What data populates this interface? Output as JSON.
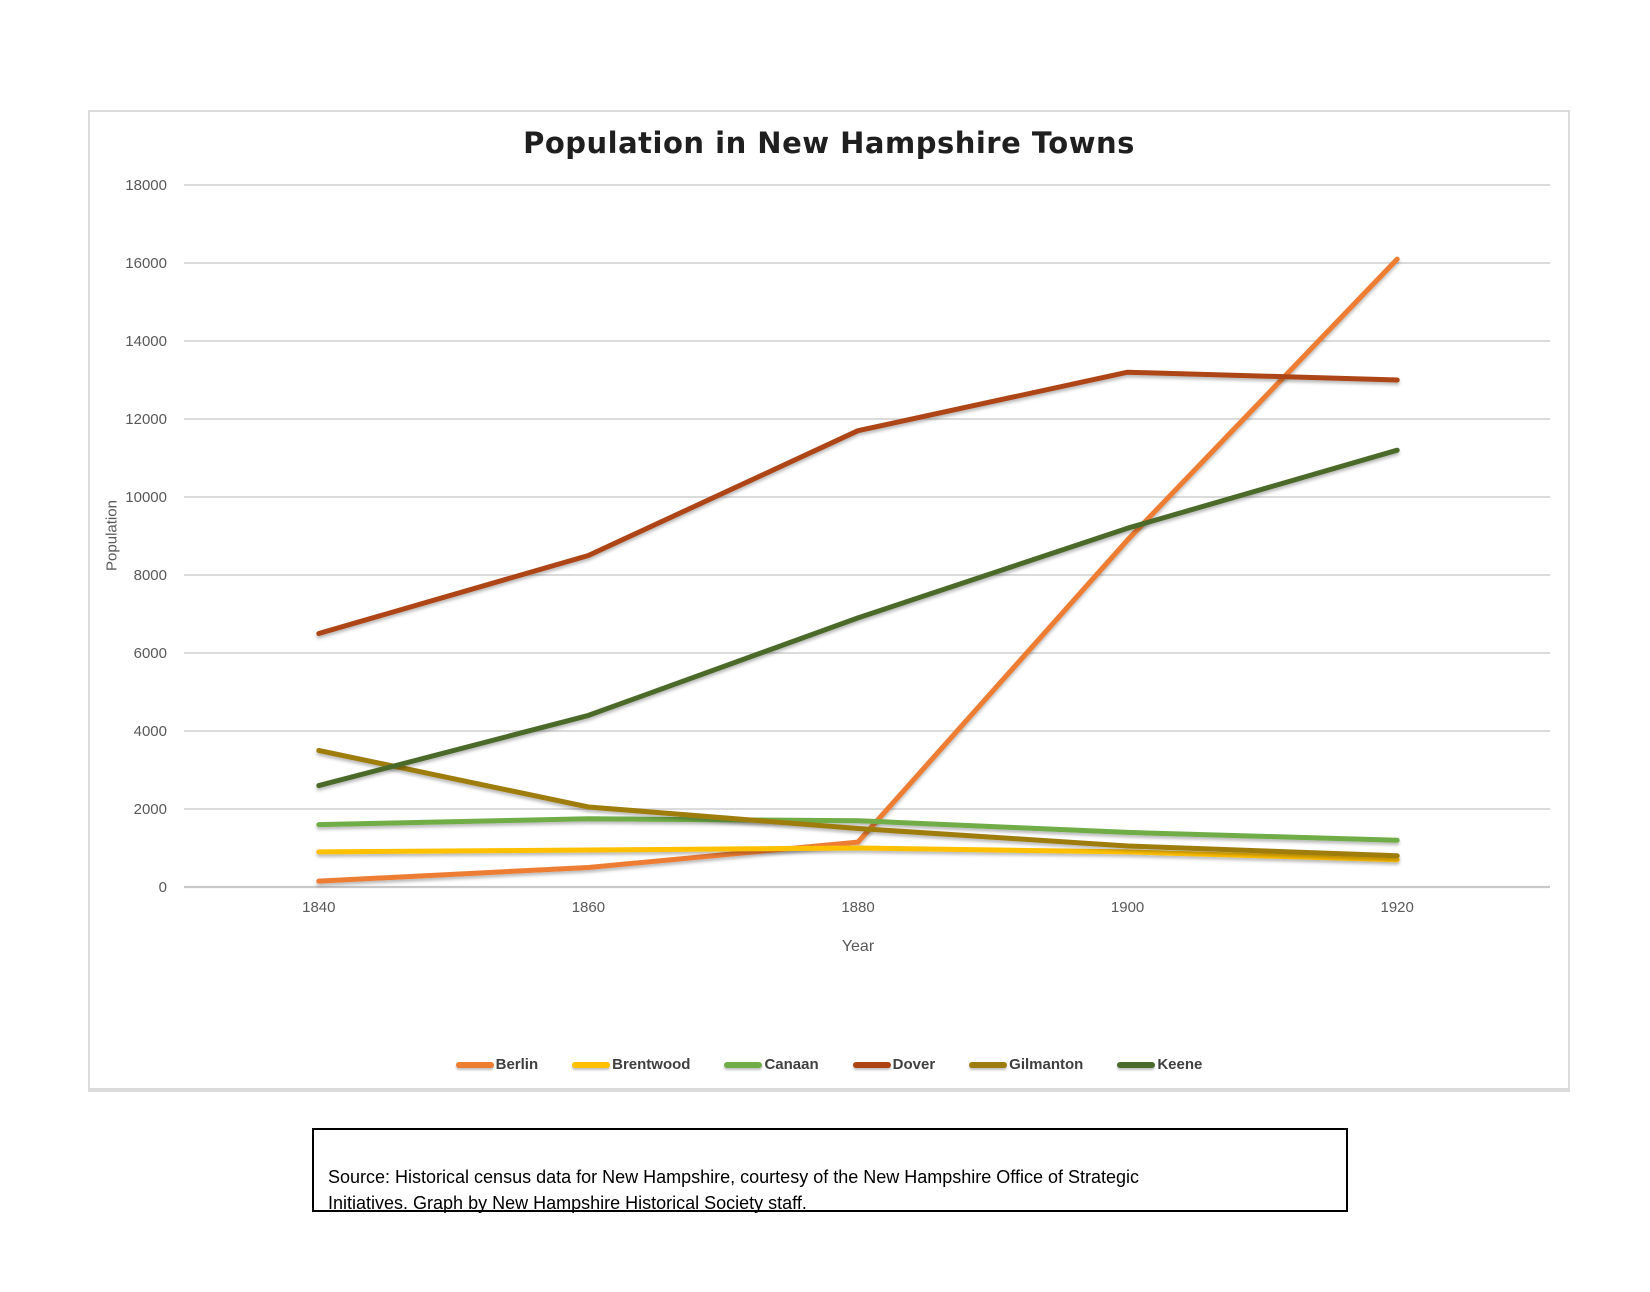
{
  "title": "Population in New Hampshire Towns",
  "source_note": "Source: Historical census data for New Hampshire, courtesy of the New Hampshire Office of Strategic\nInitiatives. Graph by New Hampshire Historical Society staff.",
  "colors": {
    "gridline": "#DBDBDB",
    "baseline": "#C8C8C8",
    "tick_text": "#595959",
    "legend_text": "#404040",
    "panel_border": "#DBDBDB",
    "title_text": "#1F1F1F"
  },
  "chart_data": {
    "type": "line",
    "title": "Population in New Hampshire Towns",
    "xlabel": "Year",
    "ylabel": "Population",
    "categories": [
      "1840",
      "1860",
      "1880",
      "1900",
      "1920"
    ],
    "ylim": [
      0,
      18000
    ],
    "ytick_step": 2000,
    "grid": "horizontal-only",
    "legend_position": "bottom",
    "series": [
      {
        "name": "Berlin",
        "color": "#ED7D31",
        "values": [
          150,
          500,
          1150,
          8900,
          16100
        ]
      },
      {
        "name": "Brentwood",
        "color": "#FFC000",
        "values": [
          900,
          950,
          1000,
          900,
          700
        ]
      },
      {
        "name": "Canaan",
        "color": "#70AD47",
        "values": [
          1600,
          1750,
          1700,
          1400,
          1200
        ]
      },
      {
        "name": "Dover",
        "color": "#AD4413",
        "values": [
          6500,
          8500,
          11700,
          13200,
          13000
        ]
      },
      {
        "name": "Gilmanton",
        "color": "#9E7D10",
        "values": [
          3500,
          2050,
          1500,
          1050,
          800
        ]
      },
      {
        "name": "Keene",
        "color": "#4C6A2B",
        "values": [
          2600,
          4400,
          6900,
          9200,
          11200
        ]
      }
    ]
  }
}
